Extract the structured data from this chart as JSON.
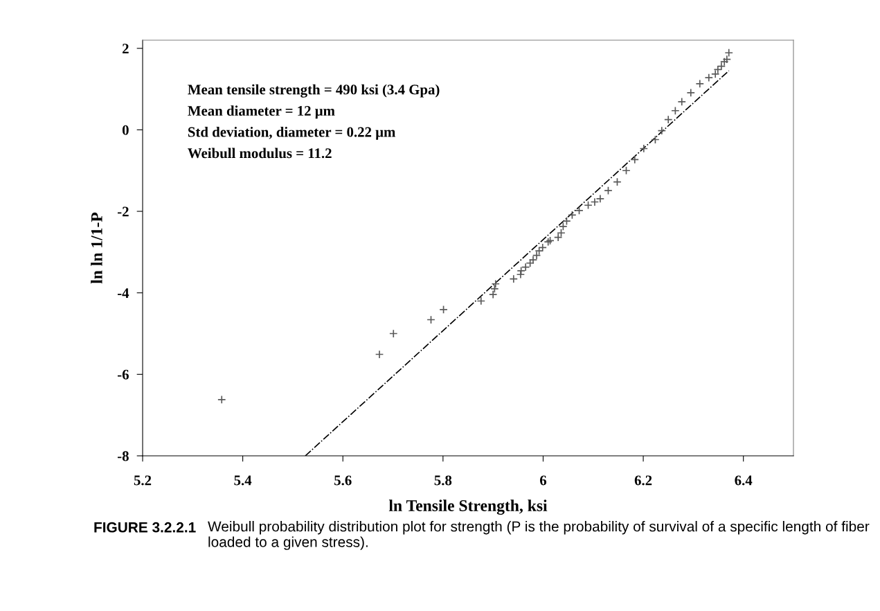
{
  "chart_data": {
    "type": "scatter",
    "xlabel": "ln Tensile Strength, ksi",
    "ylabel": "ln ln 1/1-P",
    "xlim": [
      5.2,
      6.5
    ],
    "xticks": [
      5.2,
      5.4,
      5.6,
      5.8,
      6,
      6.2,
      6.4
    ],
    "ylim": [
      -8,
      2.2
    ],
    "yticks": [
      -8,
      -6,
      -4,
      -2,
      0,
      2
    ],
    "grid": false,
    "legend": false,
    "series": [
      {
        "color": "#595959",
        "marker": "cross",
        "x": [
          5.358,
          5.673,
          5.701,
          5.776,
          5.801,
          5.876,
          5.9,
          5.903,
          5.905,
          5.941,
          5.955,
          5.956,
          5.965,
          5.974,
          5.98,
          5.987,
          5.992,
          5.999,
          6.01,
          6.014,
          6.03,
          6.036,
          6.04,
          6.047,
          6.058,
          6.072,
          6.09,
          6.103,
          6.114,
          6.13,
          6.148,
          6.166,
          6.183,
          6.201,
          6.224,
          6.237,
          6.25,
          6.264,
          6.277,
          6.295,
          6.313,
          6.331,
          6.344,
          6.349,
          6.356,
          6.362,
          6.367,
          6.371
        ],
        "values": [
          -6.62,
          -5.51,
          -5.0,
          -4.66,
          -4.41,
          -4.2,
          -4.04,
          -3.9,
          -3.78,
          -3.66,
          -3.55,
          -3.46,
          -3.37,
          -3.27,
          -3.19,
          -3.08,
          -2.97,
          -2.89,
          -2.75,
          -2.72,
          -2.64,
          -2.53,
          -2.37,
          -2.24,
          -2.09,
          -1.98,
          -1.85,
          -1.77,
          -1.69,
          -1.49,
          -1.28,
          -1.0,
          -0.73,
          -0.46,
          -0.24,
          -0.02,
          0.25,
          0.47,
          0.69,
          0.91,
          1.13,
          1.28,
          1.37,
          1.48,
          1.56,
          1.67,
          1.73,
          1.89
        ]
      },
      {
        "type": "line",
        "color": "#000000",
        "line_style": "dashdot",
        "marker": "none",
        "x": [
          5.525,
          6.371
        ],
        "values": [
          -8,
          1.45
        ]
      }
    ],
    "annotations": [
      "Mean tensile strength = 490 ksi (3.4 Gpa)",
      "Mean diameter = 12 μm",
      "Std deviation, diameter = 0.22 μm",
      "Weibull modulus = 11.2",
      "FIGURE 3.2.2.1",
      "Weibull probability distribution plot for strength (P is the probability of survival of a specific length of fiber loaded to a given stress)."
    ]
  }
}
